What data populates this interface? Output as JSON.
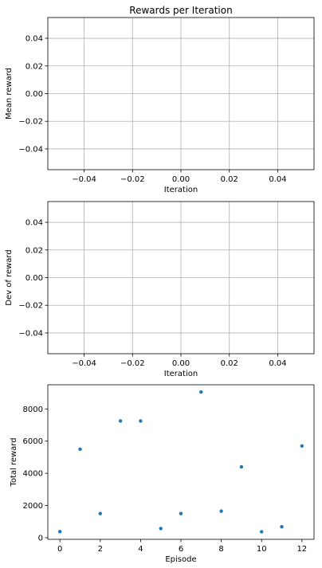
{
  "chart_data": [
    {
      "type": "scatter",
      "title": "Rewards per Iteration",
      "xlabel": "Iteration",
      "ylabel": "Mean reward",
      "xlim": [
        -0.055,
        0.055
      ],
      "ylim": [
        -0.055,
        0.055
      ],
      "xticks": [
        -0.04,
        -0.02,
        0.0,
        0.02,
        0.04
      ],
      "yticks": [
        0.04,
        0.02,
        0.0,
        -0.02,
        -0.04
      ],
      "xtick_labels": [
        "−0.04",
        "−0.02",
        "0.00",
        "0.02",
        "0.04"
      ],
      "ytick_labels": [
        "0.04",
        "0.02",
        "0.00",
        "−0.02",
        "−0.04"
      ],
      "grid": true,
      "x": [],
      "y": []
    },
    {
      "type": "scatter",
      "title": "",
      "xlabel": "Iteration",
      "ylabel": "Dev of reward",
      "xlim": [
        -0.055,
        0.055
      ],
      "ylim": [
        -0.055,
        0.055
      ],
      "xticks": [
        -0.04,
        -0.02,
        0.0,
        0.02,
        0.04
      ],
      "yticks": [
        0.04,
        0.02,
        0.0,
        -0.02,
        -0.04
      ],
      "xtick_labels": [
        "−0.04",
        "−0.02",
        "0.00",
        "0.02",
        "0.04"
      ],
      "ytick_labels": [
        "0.04",
        "0.02",
        "0.00",
        "−0.02",
        "−0.04"
      ],
      "grid": true,
      "x": [],
      "y": []
    },
    {
      "type": "scatter",
      "title": "",
      "xlabel": "Episode",
      "ylabel": "Total reward",
      "xlim": [
        -0.6,
        12.6
      ],
      "ylim": [
        -100,
        9500
      ],
      "xticks": [
        0,
        2,
        4,
        6,
        8,
        10,
        12
      ],
      "yticks": [
        0,
        2000,
        4000,
        6000,
        8000
      ],
      "xtick_labels": [
        "0",
        "2",
        "4",
        "6",
        "8",
        "10",
        "12"
      ],
      "ytick_labels": [
        "0",
        "2000",
        "4000",
        "6000",
        "8000"
      ],
      "grid": false,
      "marker_color": "#1f77b4",
      "x": [
        0,
        1,
        2,
        3,
        4,
        5,
        6,
        7,
        8,
        9,
        10,
        11,
        12
      ],
      "y": [
        380,
        5500,
        1500,
        7250,
        7250,
        570,
        1500,
        9050,
        1650,
        4400,
        370,
        680,
        5700
      ]
    }
  ],
  "colors": {
    "marker": "#1f77b4",
    "grid": "#b0b0b0",
    "axes": "#000000",
    "background": "#ffffff"
  }
}
